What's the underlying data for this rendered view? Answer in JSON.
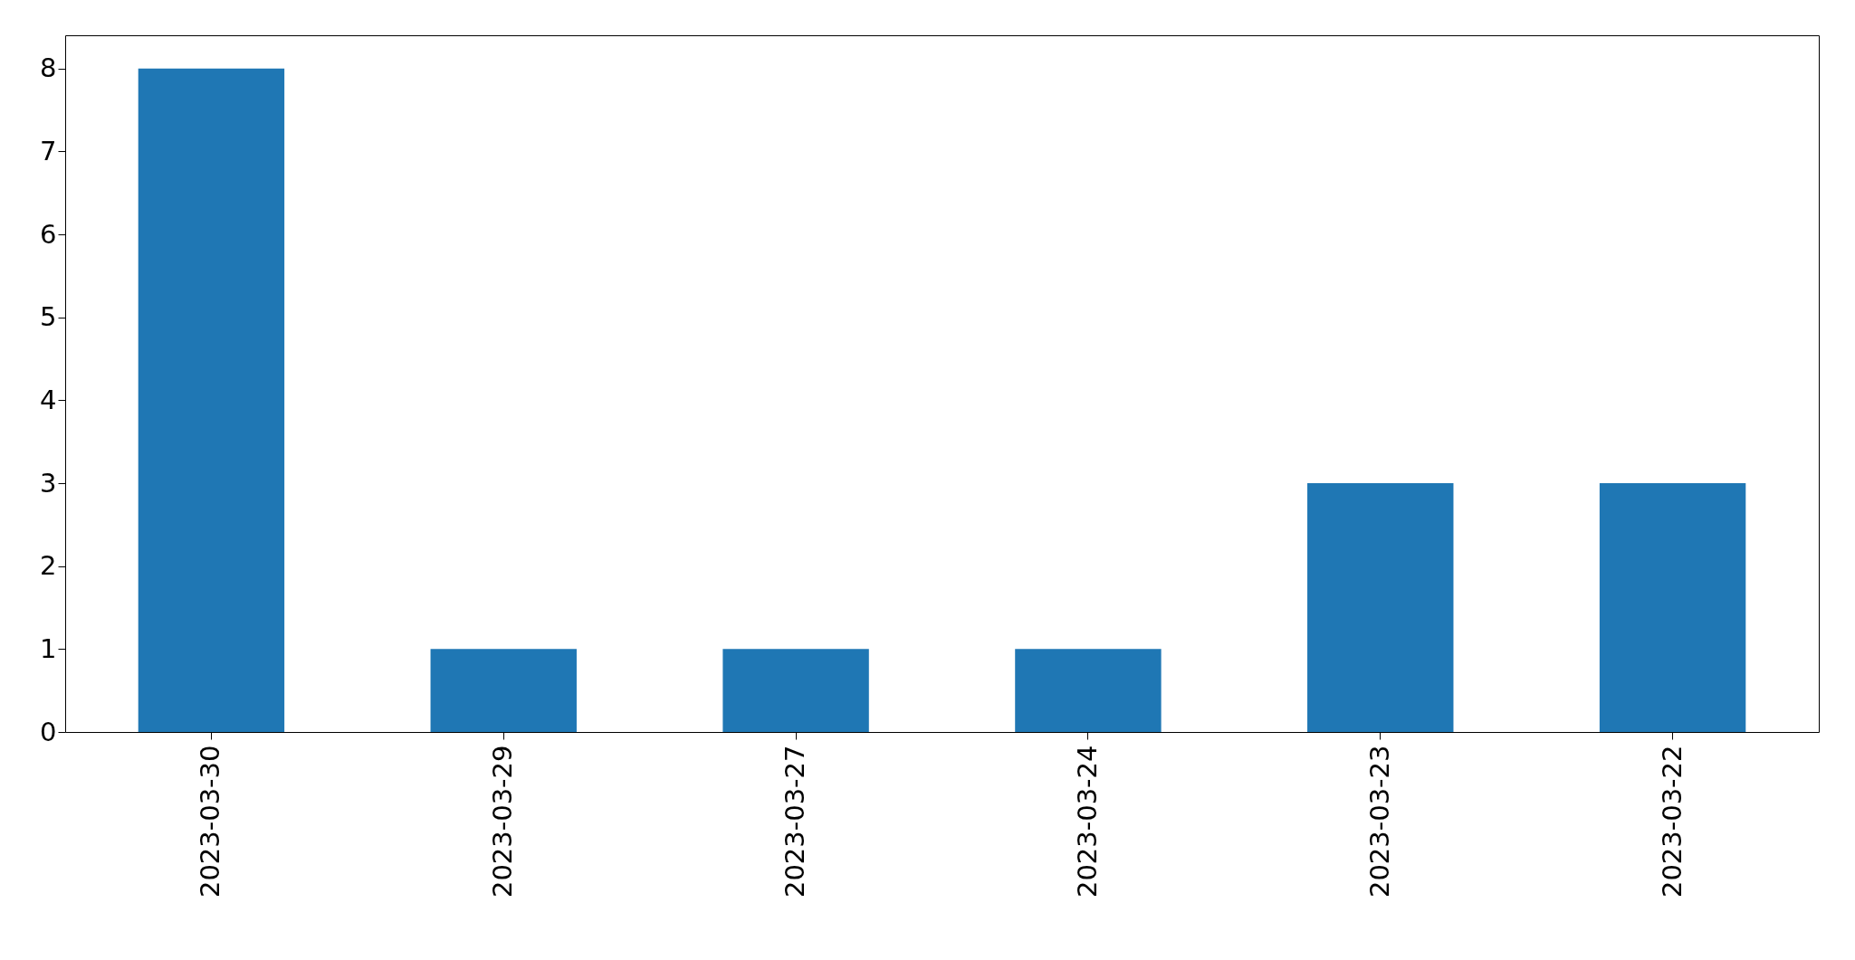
{
  "chart_data": {
    "type": "bar",
    "categories": [
      "2023-03-30",
      "2023-03-29",
      "2023-03-27",
      "2023-03-24",
      "2023-03-23",
      "2023-03-22"
    ],
    "values": [
      8,
      1,
      1,
      1,
      3,
      3
    ],
    "color": "#1f77b4",
    "ylim": [
      0,
      8.4
    ],
    "yticks": [
      0,
      1,
      2,
      3,
      4,
      5,
      6,
      7,
      8
    ],
    "grid": false
  }
}
